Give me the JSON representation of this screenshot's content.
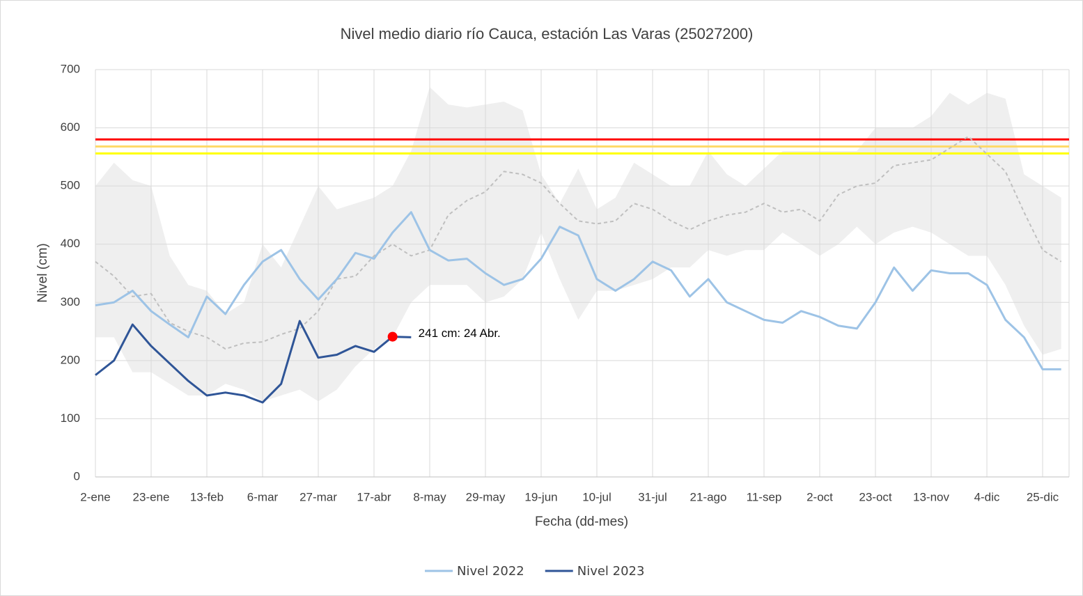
{
  "chart_data": {
    "type": "line",
    "title": "Nivel medio diario río Cauca, estación Las Varas (25027200)",
    "x_label": "Fecha (dd-mes)",
    "y_label": "Nivel (cm)",
    "categories": [
      "2-ene",
      null,
      null,
      "23-ene",
      null,
      null,
      "13-feb",
      null,
      null,
      "6-mar",
      null,
      null,
      "27-mar",
      null,
      null,
      "17-abr",
      null,
      null,
      "8-may",
      null,
      null,
      "29-may",
      null,
      null,
      "19-jun",
      null,
      null,
      "10-jul",
      null,
      null,
      "31-jul",
      null,
      null,
      "21-ago",
      null,
      null,
      "11-sep",
      null,
      null,
      "2-oct",
      null,
      null,
      "23-oct",
      null,
      null,
      "13-nov",
      null,
      null,
      "4-dic",
      null,
      null,
      "25-dic",
      null
    ],
    "ylim": [
      0,
      700
    ],
    "yticks": [
      0,
      100,
      200,
      300,
      400,
      500,
      600,
      700
    ],
    "grid": true,
    "legend": "bottom",
    "series": [
      {
        "name": "Nivel 2022",
        "color": "#9dc3e6",
        "values": [
          295,
          300,
          320,
          285,
          262,
          240,
          310,
          280,
          330,
          370,
          390,
          340,
          305,
          340,
          385,
          375,
          420,
          455,
          390,
          372,
          375,
          350,
          330,
          340,
          375,
          430,
          415,
          340,
          320,
          340,
          370,
          355,
          310,
          340,
          300,
          285,
          270,
          265,
          285,
          275,
          260,
          255,
          300,
          360,
          320,
          355,
          350,
          350,
          330,
          270,
          240,
          185,
          185
        ]
      },
      {
        "name": "Nivel 2023",
        "color": "#2f5597",
        "values": [
          175,
          200,
          262,
          225,
          195,
          165,
          140,
          145,
          140,
          128,
          160,
          268,
          205,
          210,
          225,
          215,
          241,
          240,
          null,
          null,
          null,
          null,
          null,
          null,
          null,
          null,
          null,
          null,
          null,
          null,
          null,
          null,
          null,
          null,
          null,
          null,
          null,
          null,
          null,
          null,
          null,
          null,
          null,
          null,
          null,
          null,
          null,
          null,
          null,
          null,
          null,
          null,
          null
        ]
      }
    ],
    "mean_line": {
      "color": "#bfbfbf",
      "dashed": true,
      "values": [
        370,
        345,
        310,
        315,
        265,
        250,
        240,
        220,
        230,
        232,
        245,
        255,
        285,
        340,
        345,
        380,
        400,
        380,
        390,
        450,
        475,
        490,
        525,
        520,
        505,
        470,
        440,
        435,
        440,
        470,
        460,
        440,
        425,
        440,
        450,
        455,
        470,
        455,
        460,
        440,
        485,
        500,
        505,
        535,
        540,
        545,
        565,
        585,
        555,
        525,
        455,
        390,
        370
      ]
    },
    "band": {
      "color": "#efefef",
      "upper": [
        500,
        540,
        510,
        500,
        380,
        330,
        320,
        280,
        300,
        400,
        360,
        430,
        500,
        460,
        470,
        480,
        500,
        560,
        670,
        640,
        635,
        640,
        645,
        630,
        520,
        470,
        530,
        460,
        480,
        540,
        520,
        500,
        500,
        560,
        520,
        500,
        530,
        560,
        560,
        560,
        560,
        560,
        600,
        600,
        600,
        620,
        660,
        640,
        660,
        650,
        520,
        500,
        480
      ],
      "lower": [
        240,
        240,
        180,
        180,
        160,
        140,
        140,
        160,
        150,
        130,
        140,
        150,
        130,
        150,
        190,
        220,
        240,
        300,
        330,
        330,
        330,
        300,
        310,
        340,
        420,
        340,
        270,
        320,
        320,
        330,
        340,
        360,
        360,
        390,
        380,
        390,
        390,
        420,
        400,
        380,
        400,
        430,
        400,
        420,
        430,
        420,
        400,
        380,
        380,
        330,
        260,
        210,
        220
      ]
    },
    "reference_lines": [
      {
        "value": 580,
        "color": "#ff0000"
      },
      {
        "value": 568,
        "color": "#ffd966"
      },
      {
        "value": 556,
        "color": "#ffff00"
      }
    ],
    "annotation": {
      "text": "241 cm: 24 Abr.",
      "value": 241,
      "color": "#ff0000"
    }
  }
}
